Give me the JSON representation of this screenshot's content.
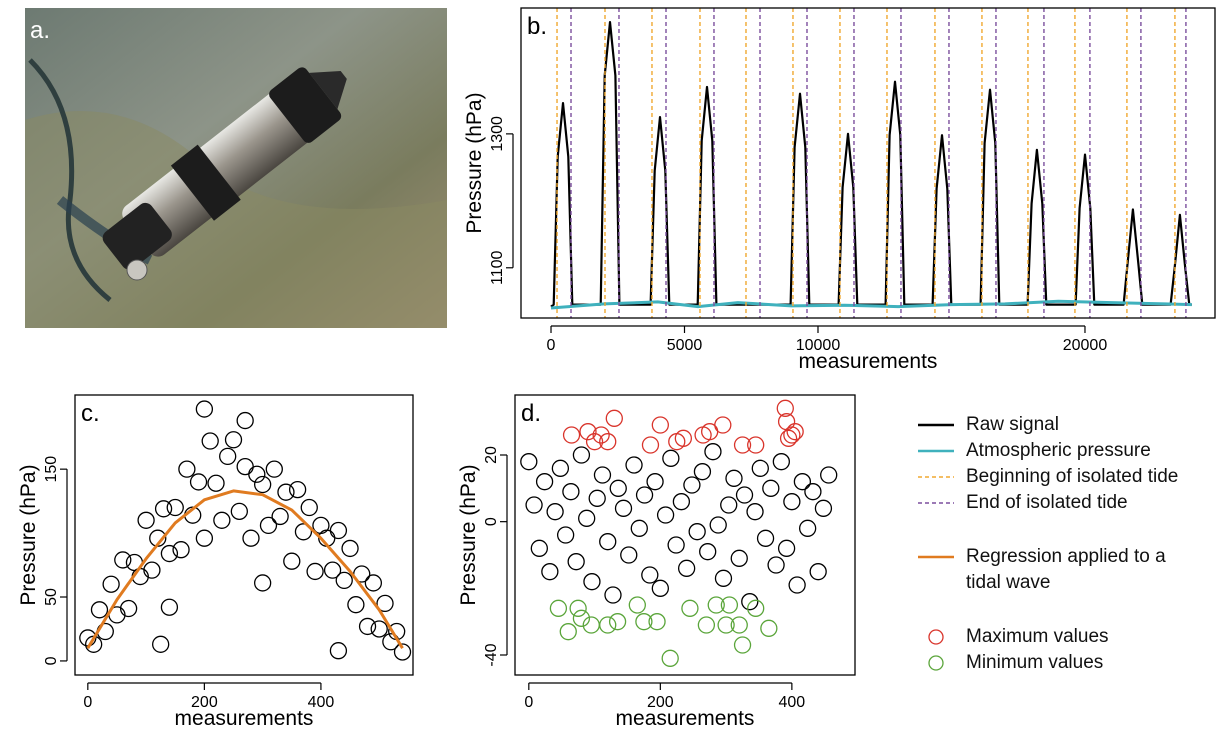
{
  "photo": {
    "label": "a."
  },
  "chart_data": [
    {
      "type": "line",
      "panel_label": "b.",
      "xlabel": "measurements",
      "ylabel": "Pressure (hPa)",
      "xlim": [
        -1124,
        24870
      ],
      "ylim": [
        1025,
        1488
      ],
      "xticks": [
        0,
        5000,
        10000,
        20000
      ],
      "yticks": [
        1100,
        1300
      ],
      "series": [
        {
          "name": "Raw signal",
          "color": "#000000",
          "kind": "line",
          "x": [
            0,
            99,
            249,
            449,
            649,
            799,
            1860,
            2010,
            2210,
            2410,
            2560,
            3732,
            3882,
            4082,
            4282,
            4432,
            5493,
            5643,
            5843,
            6043,
            6193,
            8975,
            9125,
            9325,
            9525,
            9675,
            10773,
            10923,
            11123,
            11323,
            11473,
            12533,
            12683,
            12883,
            13083,
            13233,
            14293,
            14443,
            14643,
            14843,
            14993,
            16091,
            16241,
            16441,
            16641,
            16791,
            17851,
            18001,
            18201,
            18401,
            18551,
            19649,
            19799,
            19999,
            20199,
            20349,
            21446,
            21596,
            21796,
            21996,
            22146,
            23206,
            23356,
            23556,
            23756,
            23906,
            24000
          ],
          "values": [
            1042,
            1045,
            1266,
            1346,
            1266,
            1045,
            1045,
            1387,
            1467,
            1387,
            1045,
            1045,
            1245,
            1325,
            1245,
            1045,
            1045,
            1290,
            1370,
            1290,
            1045,
            1045,
            1280,
            1360,
            1280,
            1045,
            1045,
            1220,
            1300,
            1220,
            1045,
            1045,
            1298,
            1378,
            1298,
            1045,
            1045,
            1218,
            1298,
            1218,
            1045,
            1045,
            1286,
            1366,
            1286,
            1045,
            1045,
            1196,
            1276,
            1196,
            1045,
            1045,
            1189,
            1269,
            1189,
            1045,
            1045,
            1107,
            1187,
            1107,
            1045,
            1045,
            1099,
            1179,
            1099,
            1045,
            1045
          ]
        },
        {
          "name": "Atmospheric pressure",
          "color": "#3fb1bd",
          "kind": "line",
          "x": [
            0,
            2000,
            4000,
            5500,
            7000,
            9000,
            11000,
            13000,
            15000,
            17000,
            19000,
            21000,
            23000,
            24000
          ],
          "values": [
            1040,
            1046,
            1049,
            1042,
            1048,
            1043,
            1044,
            1042,
            1045,
            1046,
            1050,
            1048,
            1046,
            1045
          ]
        },
        {
          "name": "Beginning of isolated tide",
          "color": "#f0a830",
          "kind": "vline",
          "x": [
            225,
            2022,
            3782,
            5580,
            7303,
            9063,
            10823,
            12584,
            14381,
            16141,
            17864,
            19624,
            21571,
            23369
          ]
        },
        {
          "name": "End of isolated tide",
          "color": "#7b4f9d",
          "kind": "vline",
          "x": [
            749,
            2546,
            4307,
            6104,
            7828,
            9588,
            11348,
            13108,
            14906,
            16666,
            18463,
            20185,
            22095,
            23781
          ]
        }
      ]
    },
    {
      "type": "scatter",
      "panel_label": "c.",
      "xlabel": "measurements",
      "ylabel": "Pressure (hPa)",
      "xlim": [
        -22,
        558
      ],
      "ylim": [
        -11,
        208
      ],
      "xticks": [
        0,
        200,
        400
      ],
      "yticks": [
        0,
        50,
        150
      ],
      "series": [
        {
          "color": "#000000",
          "kind": "scatter",
          "x": [
            0,
            10,
            20,
            30,
            40,
            50,
            60,
            70,
            80,
            90,
            100,
            110,
            120,
            130,
            140,
            150,
            160,
            170,
            180,
            190,
            200,
            210,
            220,
            230,
            240,
            250,
            260,
            270,
            280,
            290,
            300,
            310,
            320,
            330,
            340,
            350,
            360,
            370,
            380,
            390,
            400,
            410,
            420,
            430,
            440,
            450,
            460,
            470,
            480,
            490,
            500,
            510,
            520,
            530,
            540,
            140,
            125,
            430,
            300,
            200,
            270
          ],
          "values": [
            18,
            13,
            40,
            23,
            60,
            36,
            79,
            41,
            77,
            66,
            110,
            71,
            96,
            119,
            84,
            120,
            87,
            150,
            114,
            140,
            96,
            172,
            139,
            110,
            160,
            173,
            117,
            152,
            96,
            146,
            138,
            106,
            150,
            113,
            132,
            78,
            134,
            101,
            120,
            70,
            106,
            96,
            71,
            102,
            63,
            88,
            44,
            68,
            27,
            61,
            25,
            45,
            15,
            23,
            7,
            42,
            13,
            8,
            61,
            197,
            188
          ]
        },
        {
          "name": "Regression applied to a tidal wave",
          "color": "#e07b20",
          "kind": "line",
          "x": [
            0,
            50,
            100,
            150,
            200,
            250,
            300,
            350,
            400,
            450,
            500,
            540
          ],
          "values": [
            10,
            48,
            80,
            108,
            126,
            133,
            130,
            118,
            96,
            70,
            40,
            10
          ]
        }
      ]
    },
    {
      "type": "scatter",
      "panel_label": "d.",
      "xlabel": "measurements",
      "ylabel": "Pressure (hPa)",
      "xlim": [
        -21,
        496
      ],
      "ylim": [
        -46,
        38
      ],
      "xticks": [
        0,
        200,
        400
      ],
      "yticks": [
        -40,
        0,
        20
      ],
      "series": [
        {
          "color": "#000000",
          "kind": "scatter",
          "x": [
            0,
            8,
            16,
            24,
            32,
            40,
            48,
            56,
            64,
            72,
            80,
            88,
            96,
            104,
            112,
            120,
            128,
            136,
            144,
            152,
            160,
            168,
            176,
            184,
            192,
            200,
            208,
            216,
            224,
            232,
            240,
            248,
            256,
            264,
            272,
            280,
            288,
            296,
            304,
            312,
            320,
            328,
            336,
            344,
            352,
            360,
            368,
            376,
            384,
            392,
            400,
            408,
            416,
            424,
            432,
            440,
            448,
            456
          ],
          "values": [
            18,
            5,
            -8,
            12,
            -15,
            3,
            16,
            -4,
            9,
            -12,
            20,
            1,
            -18,
            7,
            14,
            -6,
            -22,
            10,
            4,
            -10,
            17,
            -2,
            8,
            -16,
            12,
            -20,
            2,
            19,
            -7,
            6,
            -14,
            11,
            -3,
            15,
            -9,
            21,
            -1,
            -17,
            5,
            13,
            -11,
            8,
            -24,
            3,
            16,
            -5,
            10,
            -13,
            18,
            -8,
            6,
            -19,
            12,
            -2,
            9,
            -15,
            4,
            14
          ]
        },
        {
          "name": "Maximum values",
          "color": "#d9342b",
          "kind": "scatter",
          "x": [
            65,
            90,
            100,
            110,
            120,
            130,
            185,
            200,
            225,
            235,
            265,
            275,
            295,
            325,
            345,
            390,
            392,
            400,
            395,
            405
          ],
          "values": [
            26,
            27,
            24,
            26,
            24,
            31,
            23,
            29,
            24,
            25,
            26,
            27,
            29,
            23,
            23,
            34,
            30,
            26,
            25,
            27
          ]
        },
        {
          "name": "Minimum values",
          "color": "#5aa53a",
          "kind": "scatter",
          "x": [
            45,
            60,
            75,
            80,
            95,
            120,
            135,
            165,
            175,
            195,
            215,
            245,
            270,
            285,
            300,
            305,
            320,
            325,
            345,
            365
          ],
          "values": [
            -26,
            -33,
            -26,
            -29,
            -31,
            -31,
            -30,
            -25,
            -30,
            -30,
            -41,
            -26,
            -31,
            -25,
            -31,
            -25,
            -31,
            -37,
            -26,
            -32
          ]
        }
      ]
    }
  ]
}
